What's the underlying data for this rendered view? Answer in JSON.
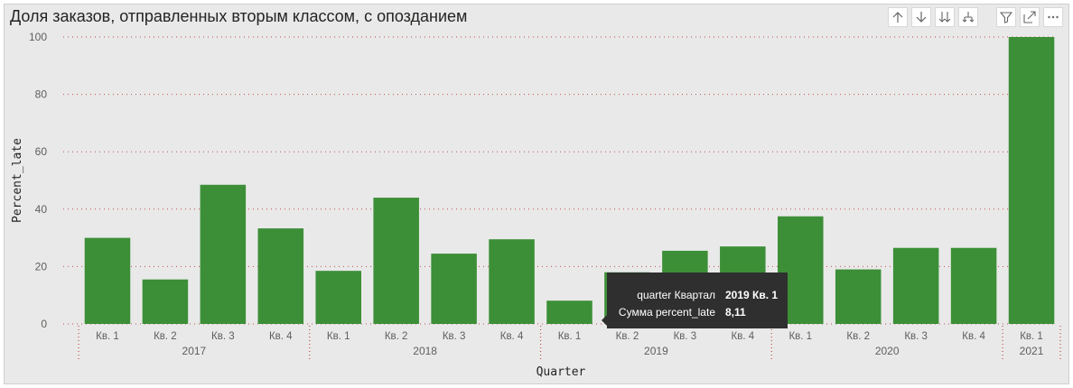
{
  "title": "Доля заказов, отправленных вторым классом, с опозданием",
  "toolbar": {
    "icons": [
      "arrow-up-icon",
      "arrow-down-icon",
      "double-arrow-down-icon",
      "expand-hierarchy-icon",
      "filter-icon",
      "focus-mode-icon",
      "more-options-icon"
    ]
  },
  "colors": {
    "bar": "#3c8f37",
    "background": "#e9e9e9",
    "grid": "#c0504d",
    "tooltip_bg": "#2f2f2f"
  },
  "chart_data": {
    "type": "bar",
    "xlabel": "Quarter",
    "ylabel": "Percent_late",
    "ylim": [
      0,
      100
    ],
    "yticks": [
      0,
      20,
      40,
      60,
      80,
      100
    ],
    "grid": true,
    "categories": [
      "Кв. 1",
      "Кв. 2",
      "Кв. 3",
      "Кв. 4",
      "Кв. 1",
      "Кв. 2",
      "Кв. 3",
      "Кв. 4",
      "Кв. 1",
      "Кв. 2",
      "Кв. 3",
      "Кв. 4",
      "Кв. 1",
      "Кв. 2",
      "Кв. 3",
      "Кв. 4",
      "Кв. 1"
    ],
    "groups": [
      {
        "label": "2017",
        "count": 4
      },
      {
        "label": "2018",
        "count": 4
      },
      {
        "label": "2019",
        "count": 4
      },
      {
        "label": "2020",
        "count": 4
      },
      {
        "label": "2021",
        "count": 1
      }
    ],
    "values": [
      30.0,
      15.5,
      48.5,
      33.3,
      18.5,
      44.0,
      24.5,
      29.5,
      8.11,
      18.0,
      25.5,
      27.0,
      37.5,
      19.0,
      26.5,
      26.5,
      100.0
    ]
  },
  "tooltip": {
    "rows": [
      {
        "label": "quarter Квартал",
        "value": "2019 Кв. 1"
      },
      {
        "label": "Сумма percent_late",
        "value": "8,11"
      }
    ]
  }
}
